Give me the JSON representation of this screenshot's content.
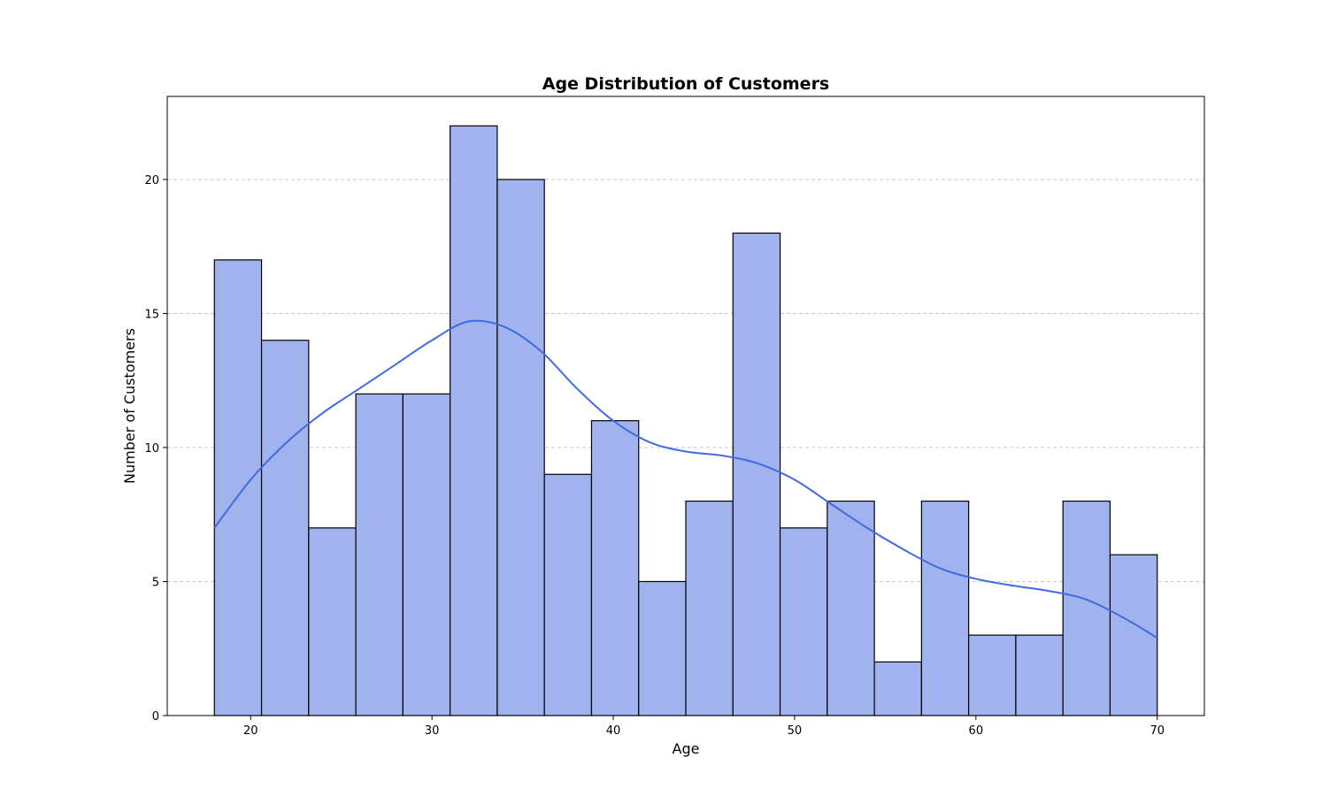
{
  "chart_data": {
    "type": "bar",
    "subtype": "histogram_with_kde",
    "title": "Age Distribution of Customers",
    "xlabel": "Age",
    "ylabel": "Number of Customers",
    "xlim": [
      15.4,
      72.6
    ],
    "ylim": [
      0,
      23.1
    ],
    "xticks": [
      20,
      30,
      40,
      50,
      60,
      70
    ],
    "yticks": [
      0,
      5,
      10,
      15,
      20
    ],
    "grid": {
      "axis": "y",
      "style": "dashed",
      "color": "#c8c8c8"
    },
    "bar_fill": "#a0b3ee",
    "bar_edge": "#000000",
    "kde_color": "#4169e1",
    "bins": [
      {
        "start": 18.0,
        "end": 20.6,
        "count": 17
      },
      {
        "start": 20.6,
        "end": 23.2,
        "count": 14
      },
      {
        "start": 23.2,
        "end": 25.8,
        "count": 7
      },
      {
        "start": 25.8,
        "end": 28.4,
        "count": 12
      },
      {
        "start": 28.4,
        "end": 31.0,
        "count": 12
      },
      {
        "start": 31.0,
        "end": 33.6,
        "count": 22
      },
      {
        "start": 33.6,
        "end": 36.2,
        "count": 20
      },
      {
        "start": 36.2,
        "end": 38.8,
        "count": 9
      },
      {
        "start": 38.8,
        "end": 41.4,
        "count": 11
      },
      {
        "start": 41.4,
        "end": 44.0,
        "count": 5
      },
      {
        "start": 44.0,
        "end": 46.6,
        "count": 8
      },
      {
        "start": 46.6,
        "end": 49.2,
        "count": 18
      },
      {
        "start": 49.2,
        "end": 51.8,
        "count": 7
      },
      {
        "start": 51.8,
        "end": 54.4,
        "count": 8
      },
      {
        "start": 54.4,
        "end": 57.0,
        "count": 2
      },
      {
        "start": 57.0,
        "end": 59.6,
        "count": 8
      },
      {
        "start": 59.6,
        "end": 62.2,
        "count": 3
      },
      {
        "start": 62.2,
        "end": 64.8,
        "count": 3
      },
      {
        "start": 64.8,
        "end": 67.4,
        "count": 8
      },
      {
        "start": 67.4,
        "end": 70.0,
        "count": 6
      }
    ],
    "kde": [
      {
        "x": 18,
        "y": 7.0
      },
      {
        "x": 20,
        "y": 8.8
      },
      {
        "x": 22,
        "y": 10.2
      },
      {
        "x": 24,
        "y": 11.3
      },
      {
        "x": 26,
        "y": 12.2
      },
      {
        "x": 28,
        "y": 13.1
      },
      {
        "x": 30,
        "y": 14.0
      },
      {
        "x": 32,
        "y": 14.7
      },
      {
        "x": 34,
        "y": 14.5
      },
      {
        "x": 36,
        "y": 13.6
      },
      {
        "x": 38,
        "y": 12.2
      },
      {
        "x": 40,
        "y": 11.0
      },
      {
        "x": 42,
        "y": 10.2
      },
      {
        "x": 44,
        "y": 9.85
      },
      {
        "x": 46,
        "y": 9.7
      },
      {
        "x": 48,
        "y": 9.4
      },
      {
        "x": 50,
        "y": 8.8
      },
      {
        "x": 52,
        "y": 7.9
      },
      {
        "x": 54,
        "y": 7.0
      },
      {
        "x": 56,
        "y": 6.2
      },
      {
        "x": 58,
        "y": 5.5
      },
      {
        "x": 60,
        "y": 5.1
      },
      {
        "x": 62,
        "y": 4.85
      },
      {
        "x": 64,
        "y": 4.65
      },
      {
        "x": 66,
        "y": 4.35
      },
      {
        "x": 68,
        "y": 3.7
      },
      {
        "x": 70,
        "y": 2.9
      }
    ]
  }
}
